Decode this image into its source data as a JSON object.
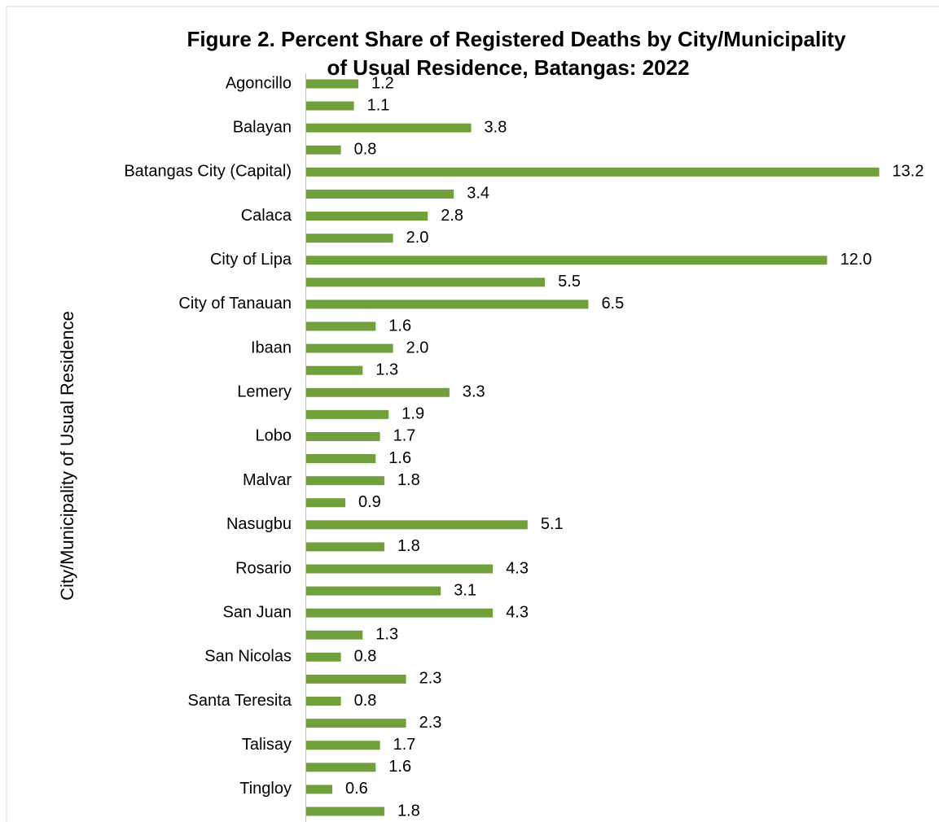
{
  "chart_data": {
    "type": "barh",
    "title": [
      "Figure 2. Percent Share of Registered Deaths by City/Municipality",
      "of Usual Residence, Batangas: 2022"
    ],
    "y_label": "City/Municipality of Usual Residence",
    "color": "#70a03c",
    "categories": [
      "Agoncillo",
      null,
      "Balayan",
      null,
      "Batangas City (Capital)",
      null,
      "Calaca",
      null,
      "City of Lipa",
      null,
      "City of Tanauan",
      null,
      "Ibaan",
      null,
      "Lemery",
      null,
      "Lobo",
      null,
      "Malvar",
      null,
      "Nasugbu",
      null,
      "Rosario",
      null,
      "San Juan",
      null,
      "San Nicolas",
      null,
      "Santa Teresita",
      null,
      "Talisay",
      null,
      "Tingloy",
      null
    ],
    "values": [
      1.2,
      1.1,
      3.8,
      0.8,
      13.2,
      3.4,
      2.8,
      2.0,
      12.0,
      5.5,
      6.5,
      1.6,
      2.0,
      1.3,
      3.3,
      1.9,
      1.7,
      1.6,
      1.8,
      0.9,
      5.1,
      1.8,
      4.3,
      3.1,
      4.3,
      1.3,
      0.8,
      2.3,
      0.8,
      2.3,
      1.7,
      1.6,
      0.6,
      1.8
    ],
    "value_labels": [
      "1.2",
      "1.1",
      "3.8",
      "0.8",
      "13.2",
      "3.4",
      "2.8",
      "2.0",
      "12.0",
      "5.5",
      "6.5",
      "1.6",
      "2.0",
      "1.3",
      "3.3",
      "1.9",
      "1.7",
      "1.6",
      "1.8",
      "0.9",
      "5.1",
      "1.8",
      "4.3",
      "3.1",
      "4.3",
      "1.3",
      "0.8",
      "2.3",
      "0.8",
      "2.3",
      "1.7",
      "1.6",
      "0.6",
      "1.8"
    ]
  }
}
